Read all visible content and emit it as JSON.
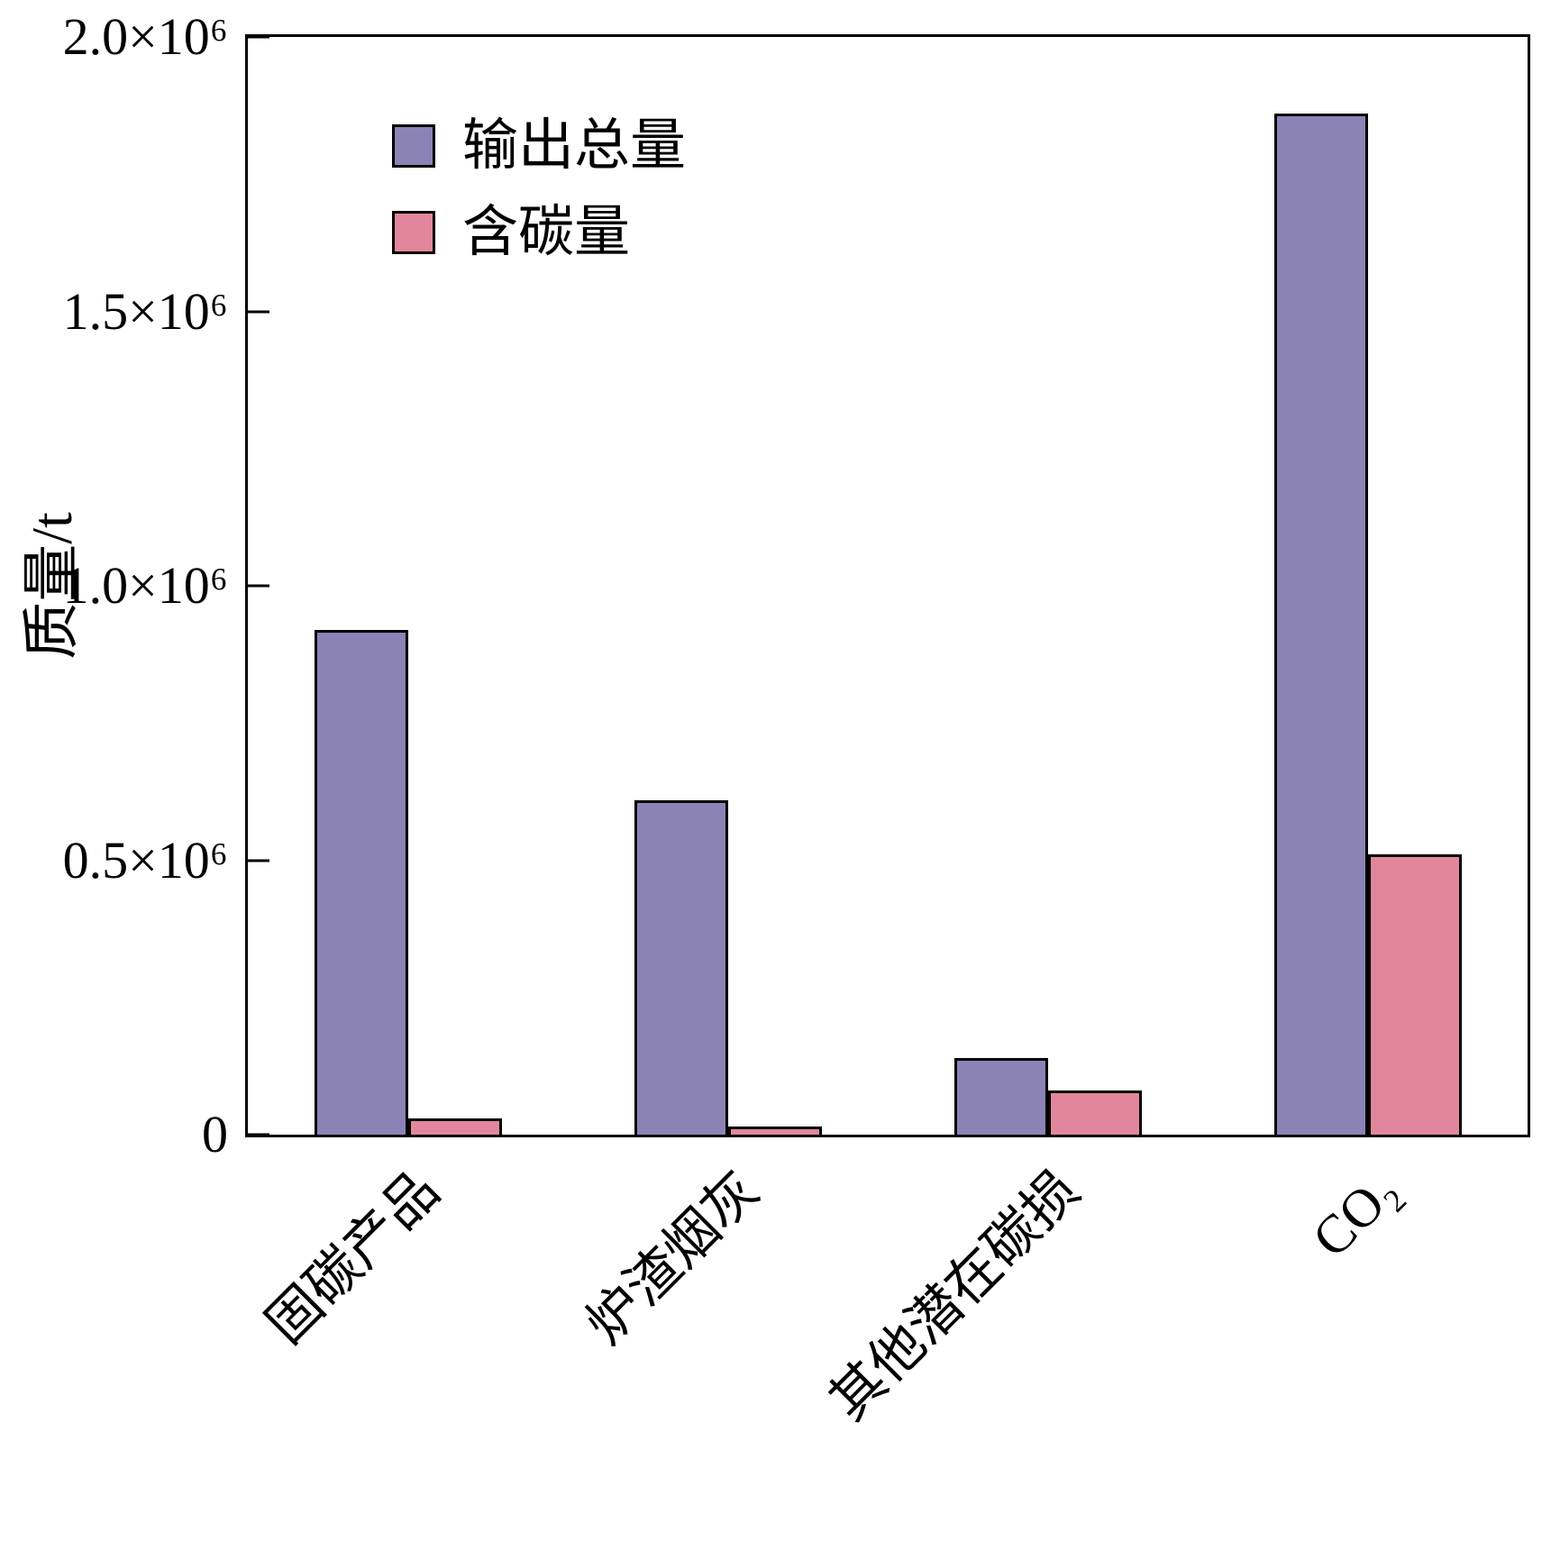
{
  "chart_data": {
    "type": "bar",
    "title": "",
    "xlabel": "",
    "ylabel": "质量/t",
    "categories": [
      "固碳产品",
      "炉渣烟灰",
      "其他潜在碳损",
      "CO₂"
    ],
    "series": [
      {
        "name": "输出总量",
        "color": "#8b83b6",
        "values": [
          920000,
          610000,
          140000,
          1860000
        ]
      },
      {
        "name": "含碳量",
        "color": "#e2879b",
        "values": [
          30000,
          15000,
          80000,
          510000
        ]
      }
    ],
    "ylim": [
      0,
      2000000
    ],
    "yticks": [
      0,
      500000,
      1000000,
      1500000,
      2000000
    ],
    "ytick_labels": [
      "0",
      "0.5×10⁶",
      "1.0×10⁶",
      "1.5×10⁶",
      "2.0×10⁶"
    ],
    "grid": false,
    "legend_position": "top-left-inside",
    "bar_outline_color": "#000000"
  }
}
